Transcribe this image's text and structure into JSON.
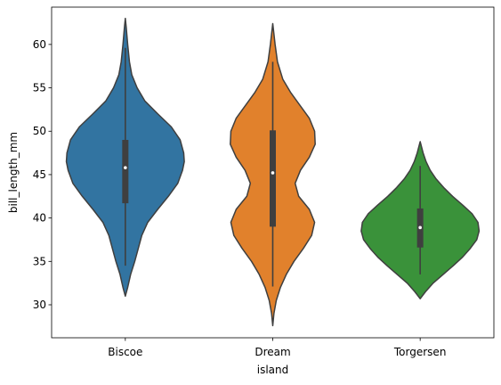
{
  "chart_data": {
    "type": "violin",
    "xlabel": "island",
    "ylabel": "bill_length_mm",
    "ylim": [
      26.2,
      64.3
    ],
    "yticks": [
      30,
      35,
      40,
      45,
      50,
      55,
      60
    ],
    "grid": false,
    "categories": [
      "Biscoe",
      "Dream",
      "Torgersen"
    ],
    "violins": [
      {
        "category": "Biscoe",
        "color": "#3274a1",
        "range": [
          31.0,
          63.0
        ],
        "quartiles": [
          41.7,
          45.8,
          49.0
        ],
        "whiskers": [
          34.5,
          59.6
        ],
        "profile": [
          [
            31.0,
            0.0
          ],
          [
            32.0,
            0.04
          ],
          [
            33.5,
            0.09
          ],
          [
            35.0,
            0.16
          ],
          [
            36.5,
            0.22
          ],
          [
            38.0,
            0.28
          ],
          [
            39.5,
            0.38
          ],
          [
            41.0,
            0.55
          ],
          [
            42.5,
            0.73
          ],
          [
            44.0,
            0.89
          ],
          [
            45.5,
            0.97
          ],
          [
            46.5,
            1.0
          ],
          [
            47.5,
            0.99
          ],
          [
            49.0,
            0.93
          ],
          [
            50.5,
            0.78
          ],
          [
            52.0,
            0.55
          ],
          [
            53.5,
            0.33
          ],
          [
            55.0,
            0.2
          ],
          [
            56.5,
            0.11
          ],
          [
            58.0,
            0.07
          ],
          [
            60.0,
            0.04
          ],
          [
            62.0,
            0.015
          ],
          [
            63.0,
            0.0
          ]
        ]
      },
      {
        "category": "Dream",
        "color": "#e1812c",
        "range": [
          27.6,
          62.4
        ],
        "quartiles": [
          39.0,
          45.2,
          50.1
        ],
        "whiskers": [
          32.1,
          58.0
        ],
        "profile": [
          [
            27.6,
            0.0
          ],
          [
            29.0,
            0.02
          ],
          [
            30.5,
            0.06
          ],
          [
            32.0,
            0.13
          ],
          [
            33.5,
            0.23
          ],
          [
            35.0,
            0.36
          ],
          [
            36.5,
            0.52
          ],
          [
            38.0,
            0.66
          ],
          [
            39.5,
            0.71
          ],
          [
            41.0,
            0.62
          ],
          [
            42.5,
            0.44
          ],
          [
            44.0,
            0.38
          ],
          [
            45.5,
            0.47
          ],
          [
            47.0,
            0.62
          ],
          [
            48.5,
            0.72
          ],
          [
            50.0,
            0.71
          ],
          [
            51.5,
            0.62
          ],
          [
            53.0,
            0.46
          ],
          [
            54.5,
            0.3
          ],
          [
            56.0,
            0.17
          ],
          [
            58.0,
            0.08
          ],
          [
            60.0,
            0.04
          ],
          [
            62.4,
            0.0
          ]
        ]
      },
      {
        "category": "Torgersen",
        "color": "#3a923a",
        "range": [
          30.7,
          48.8
        ],
        "quartiles": [
          36.6,
          38.9,
          41.1
        ],
        "whiskers": [
          33.5,
          46.0
        ],
        "profile": [
          [
            30.7,
            0.0
          ],
          [
            31.5,
            0.09
          ],
          [
            32.5,
            0.22
          ],
          [
            33.5,
            0.39
          ],
          [
            34.5,
            0.56
          ],
          [
            35.5,
            0.72
          ],
          [
            36.5,
            0.85
          ],
          [
            37.5,
            0.96
          ],
          [
            38.5,
            1.0
          ],
          [
            39.5,
            0.98
          ],
          [
            40.5,
            0.88
          ],
          [
            41.5,
            0.72
          ],
          [
            42.5,
            0.55
          ],
          [
            43.5,
            0.4
          ],
          [
            44.5,
            0.27
          ],
          [
            45.5,
            0.17
          ],
          [
            46.5,
            0.1
          ],
          [
            47.5,
            0.05
          ],
          [
            48.8,
            0.0
          ]
        ]
      }
    ]
  }
}
